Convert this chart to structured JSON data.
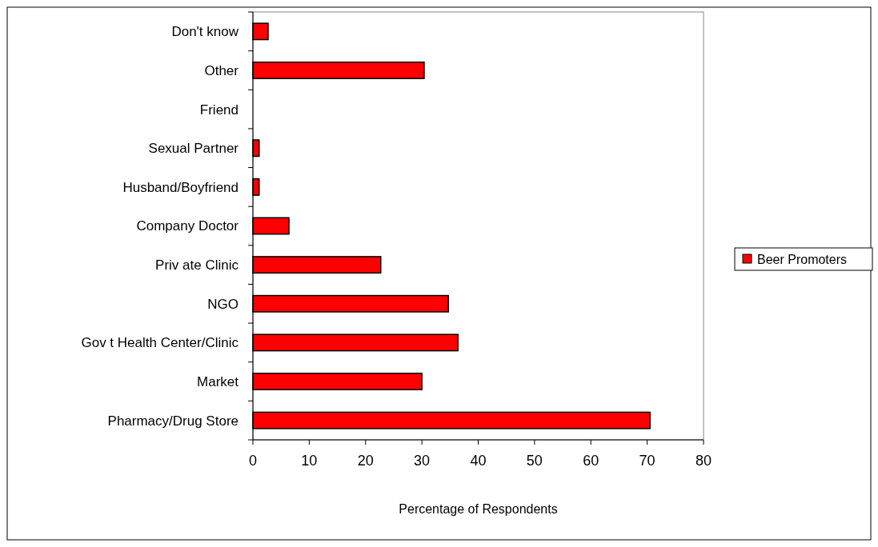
{
  "chart_data": {
    "type": "bar",
    "orientation": "horizontal",
    "xlabel": "Percentage of Respondents",
    "categories": [
      "Don't know",
      "Other",
      "Friend",
      "Sexual Partner",
      "Husband/Boyfriend",
      "Company Doctor",
      "Priv ate Clinic",
      "NGO",
      "Gov t Health Center/Clinic",
      "Market",
      "Pharmacy/Drug Store"
    ],
    "series": [
      {
        "name": "Beer Promoters",
        "color": "#ff0000",
        "values": [
          2.7,
          30.4,
          0,
          1.1,
          1.1,
          6.4,
          22.7,
          34.7,
          36.4,
          30,
          70.5
        ]
      }
    ],
    "xlim": [
      0,
      80
    ],
    "xticks": [
      0,
      10,
      20,
      30,
      40,
      50,
      60,
      70,
      80
    ],
    "legend": "right",
    "grid": false
  }
}
